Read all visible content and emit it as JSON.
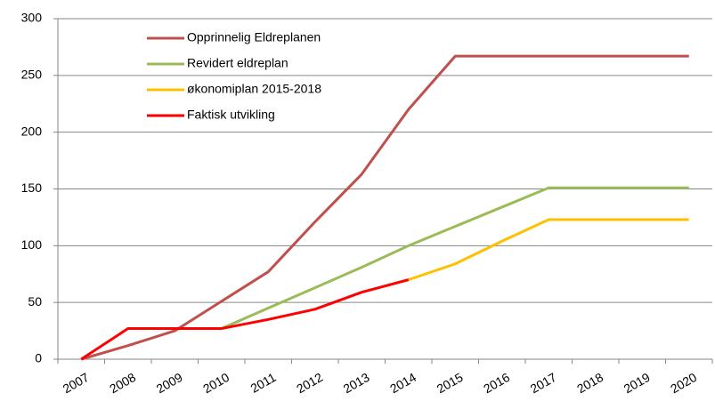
{
  "chart_data": {
    "type": "line",
    "categories": [
      "2007",
      "2008",
      "2009",
      "2010",
      "2011",
      "2012",
      "2013",
      "2014",
      "2015",
      "2016",
      "2017",
      "2018",
      "2019",
      "2020"
    ],
    "series": [
      {
        "name": "Opprinnelig Eldreplanen",
        "color": "#c0504d",
        "values": [
          0,
          12,
          25,
          51,
          77,
          121,
          163,
          220,
          267,
          267,
          267,
          267,
          267,
          267
        ]
      },
      {
        "name": "Revidert eldreplan",
        "color": "#9bbb59",
        "values": [
          null,
          null,
          null,
          27,
          45,
          63,
          81,
          100,
          117,
          134,
          151,
          151,
          151,
          151
        ]
      },
      {
        "name": "økonomiplan 2015-2018",
        "color": "#ffc000",
        "values": [
          null,
          null,
          null,
          null,
          null,
          null,
          null,
          70,
          84,
          104,
          123,
          123,
          123,
          123
        ]
      },
      {
        "name": "Faktisk utvikling",
        "color": "#ff0000",
        "values": [
          0,
          27,
          27,
          27,
          35,
          44,
          59,
          70,
          null,
          null,
          null,
          null,
          null,
          null
        ]
      }
    ],
    "ylim": [
      0,
      300
    ],
    "yticks": [
      0,
      50,
      100,
      150,
      200,
      250,
      300
    ],
    "grid": true,
    "legend": "top-left"
  }
}
